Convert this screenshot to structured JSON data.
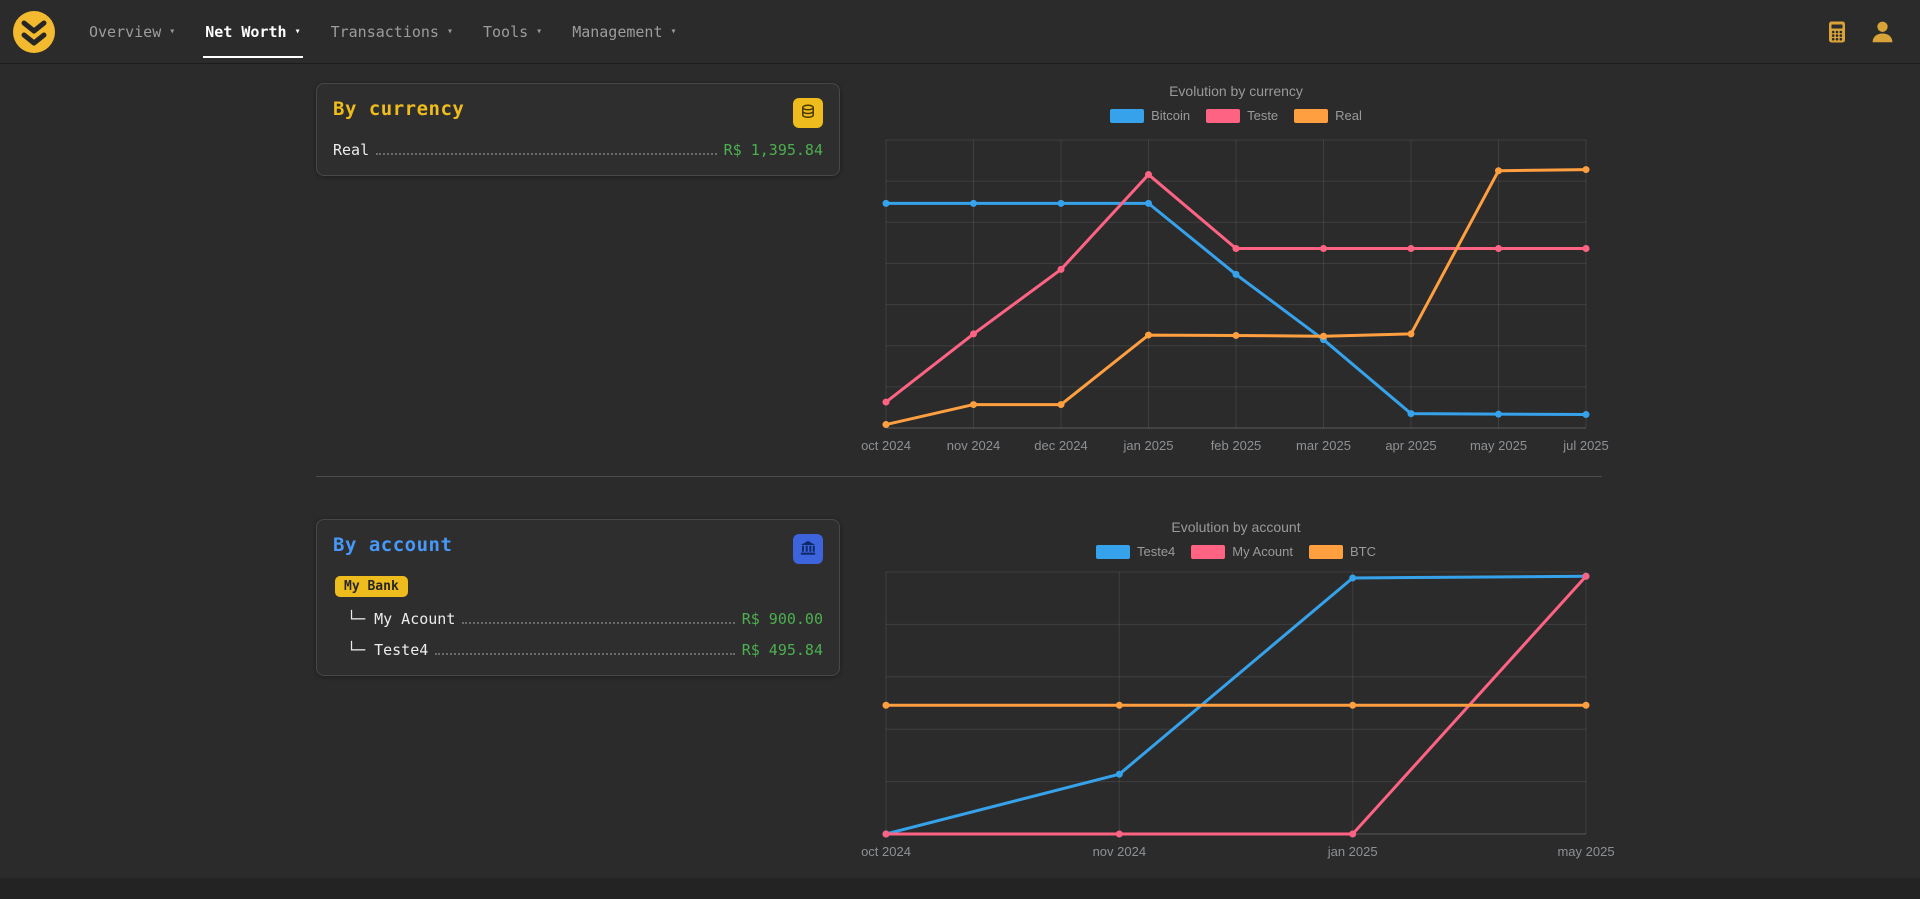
{
  "nav": {
    "caret": "▾",
    "items": [
      {
        "label": "Overview"
      },
      {
        "label": "Net Worth"
      },
      {
        "label": "Transactions"
      },
      {
        "label": "Tools"
      },
      {
        "label": "Management"
      }
    ],
    "active_item": "Net Worth"
  },
  "header_icons": [
    "calculator-icon",
    "user-icon"
  ],
  "panels": {
    "by_currency": {
      "title": "By currency",
      "icon": "coins-icon",
      "rows": [
        {
          "label": "Real",
          "value": "R$ 1,395.84"
        }
      ]
    },
    "by_account": {
      "title": "By account",
      "icon": "bank-icon",
      "badge": "My Bank",
      "rows": [
        {
          "label": "└─ My Acount",
          "value": "R$ 900.00"
        },
        {
          "label": "└─ Teste4",
          "value": "R$ 495.84"
        }
      ]
    }
  },
  "colors": {
    "accent_yellow": "#eebc1d",
    "accent_blue": "#4798f8",
    "value_green": "#4caf50",
    "chart_blue": "#36a2eb",
    "chart_pink": "#ff6384",
    "chart_orange": "#ff9f40"
  },
  "chart_data": [
    {
      "type": "line",
      "title": "Evolution by currency",
      "categories": [
        "oct 2024",
        "nov 2024",
        "dec 2024",
        "jan 2025",
        "feb 2025",
        "mar 2025",
        "apr 2025",
        "may 2025",
        "jul 2025"
      ],
      "series": [
        {
          "name": "Bitcoin",
          "color": "#36a2eb",
          "values": [
            1170,
            1170,
            1170,
            1170,
            800,
            460,
            75,
            72,
            70
          ]
        },
        {
          "name": "Teste",
          "color": "#ff6384",
          "values": [
            135,
            490,
            826,
            1320,
            935,
            935,
            935,
            935,
            935
          ]
        },
        {
          "name": "Real",
          "color": "#ff9f40",
          "values": [
            18,
            122,
            122,
            484,
            482,
            478,
            490,
            1340,
            1346
          ]
        }
      ],
      "ylim": [
        0,
        1500
      ],
      "y_ticks": 8,
      "grid": true,
      "legend_position": "top"
    },
    {
      "type": "line",
      "title": "Evolution by account",
      "categories": [
        "oct 2024",
        "nov 2024",
        "jan 2025",
        "may 2025"
      ],
      "series": [
        {
          "name": "Teste4",
          "color": "#36a2eb",
          "values": [
            0,
            210,
            899,
            905
          ]
        },
        {
          "name": "My Acount",
          "color": "#ff6384",
          "values": [
            0,
            0,
            0,
            905
          ]
        },
        {
          "name": "BTC",
          "color": "#ff9f40",
          "values": [
            452,
            452,
            452,
            452
          ]
        }
      ],
      "ylim": [
        0,
        920
      ],
      "y_ticks": 6,
      "grid": true,
      "legend_position": "top"
    }
  ]
}
